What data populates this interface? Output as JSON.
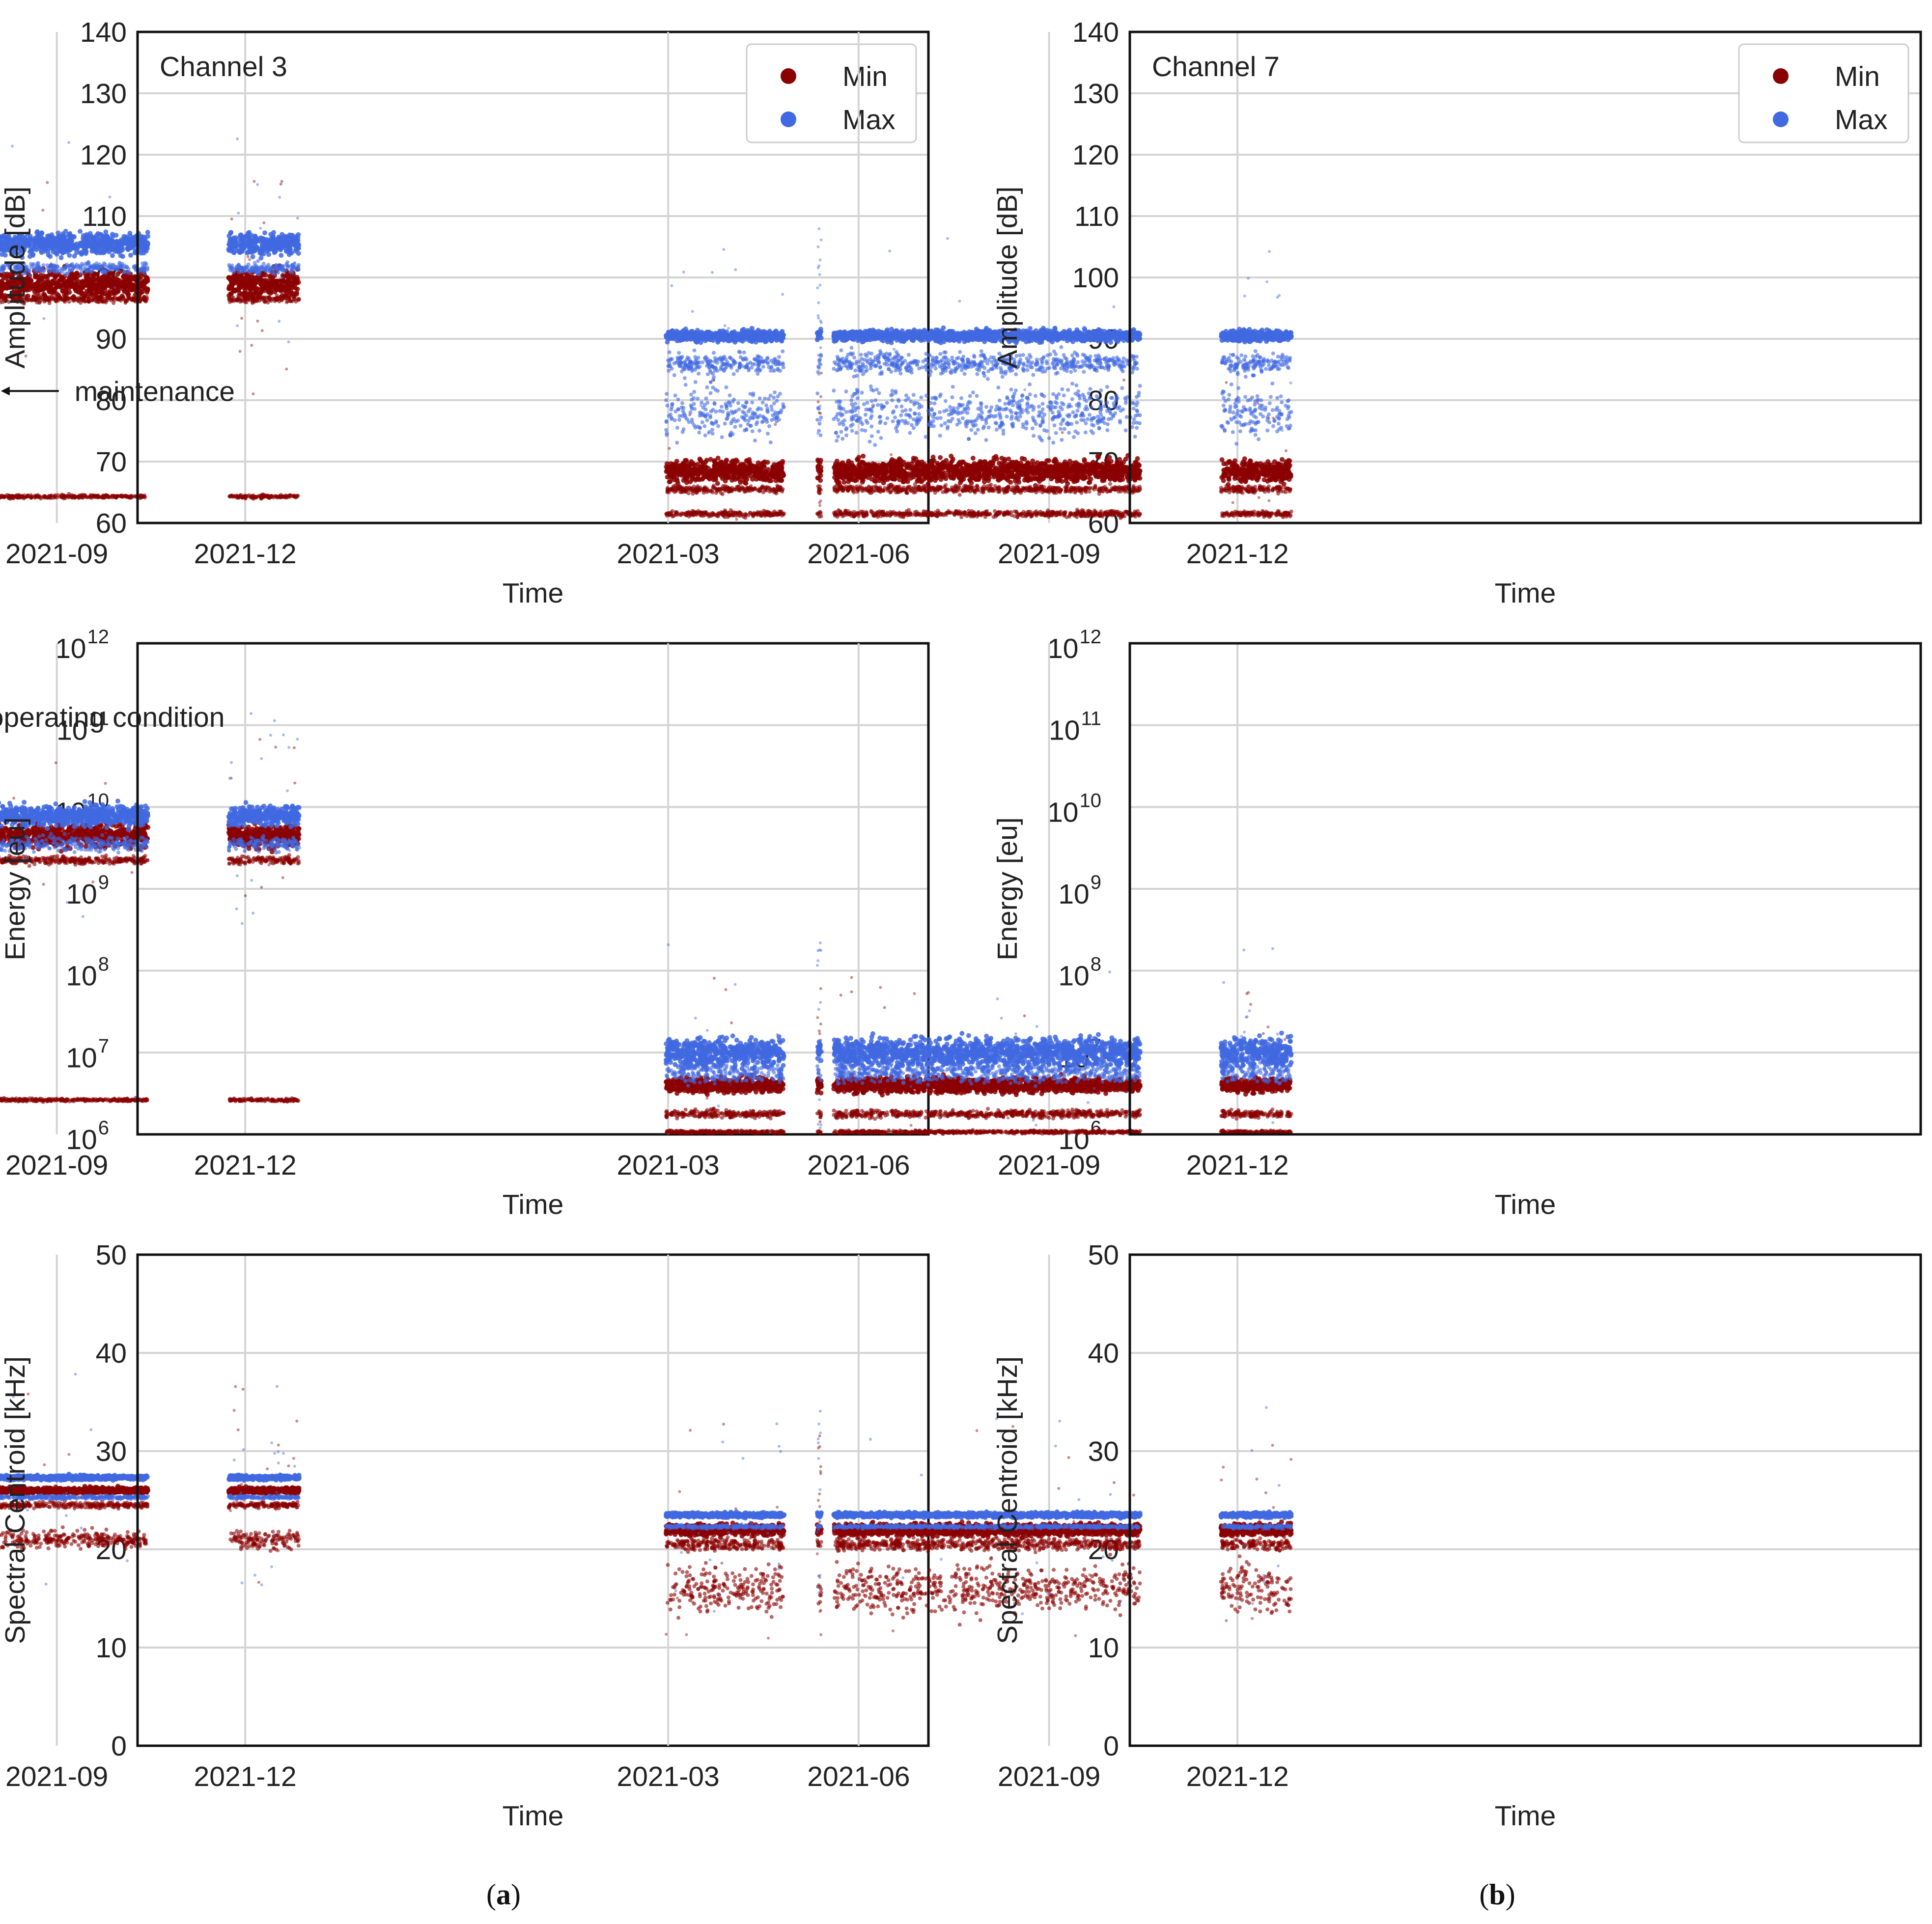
{
  "colors": {
    "min": "#8b0000",
    "max": "#4169e1",
    "grid": "#d4d4d4"
  },
  "subfigure_labels": [
    "a",
    "b"
  ],
  "chart_data": [
    {
      "type": "scatter",
      "panel": "a-amplitude",
      "title": "Channel 3",
      "xlabel": "Time",
      "ylabel": "Amplitude [dB]",
      "yscale": "linear",
      "ylim": [
        60,
        140
      ],
      "yticks": [
        "60",
        "70",
        "80",
        "90",
        "100",
        "110",
        "120",
        "130",
        "140"
      ],
      "xticks": [
        "2021-03",
        "2021-06",
        "2021-09",
        "2021-12"
      ],
      "legend": {
        "entries": [
          "Min",
          "Max"
        ],
        "placement": "top-right"
      },
      "annotation": "maintenance",
      "series": [
        {
          "name": "Min",
          "bands": [
            [
              99,
              3.5
            ],
            [
              96.5,
              1
            ],
            [
              64.3,
              0.5
            ]
          ]
        },
        {
          "name": "Max",
          "bands": [
            [
              105.5,
              3
            ],
            [
              101.5,
              1.5
            ]
          ]
        }
      ]
    },
    {
      "type": "scatter",
      "panel": "b-amplitude",
      "title": "Channel 7",
      "xlabel": "Time",
      "ylabel": "Amplitude [dB]",
      "yscale": "linear",
      "ylim": [
        60,
        140
      ],
      "yticks": [
        "60",
        "70",
        "80",
        "90",
        "100",
        "110",
        "120",
        "130",
        "140"
      ],
      "xticks": [
        "2021-03",
        "2021-06",
        "2021-09",
        "2021-12"
      ],
      "legend": {
        "entries": [
          "Min",
          "Max"
        ],
        "placement": "top-right"
      },
      "annotation": "",
      "series": [
        {
          "name": "Min",
          "bands": [
            [
              68.5,
              3
            ],
            [
              65.5,
              1
            ],
            [
              61.5,
              0.8
            ]
          ]
        },
        {
          "name": "Max",
          "bands": [
            [
              90.5,
              1.5
            ],
            [
              86,
              3
            ],
            [
              78,
              7
            ]
          ]
        }
      ]
    },
    {
      "type": "scatter",
      "panel": "a-energy",
      "title": "",
      "xlabel": "Time",
      "ylabel": "Energy [eu]",
      "yscale": "log",
      "ylim": [
        1000000,
        1000000000000
      ],
      "yticks": [
        {
          "base": "10",
          "exp": "6"
        },
        {
          "base": "10",
          "exp": "7"
        },
        {
          "base": "10",
          "exp": "8"
        },
        {
          "base": "10",
          "exp": "9"
        },
        {
          "base": "10",
          "exp": "10"
        },
        {
          "base": "10",
          "exp": "11"
        },
        {
          "base": "10",
          "exp": "12"
        }
      ],
      "xticks": [
        "2021-03",
        "2021-06",
        "2021-09",
        "2021-12"
      ],
      "annotation": "special operating condition",
      "series": [
        {
          "name": "Min",
          "bands": [
            [
              9.65,
              0.25
            ],
            [
              9.35,
              0.08
            ],
            [
              6.42,
              0.03
            ]
          ]
        },
        {
          "name": "Max",
          "bands": [
            [
              9.9,
              0.2
            ],
            [
              9.55,
              0.15
            ]
          ]
        }
      ]
    },
    {
      "type": "scatter",
      "panel": "b-energy",
      "title": "",
      "xlabel": "Time",
      "ylabel": "Energy [eu]",
      "yscale": "log",
      "ylim": [
        1000000,
        1000000000000
      ],
      "yticks": [
        {
          "base": "10",
          "exp": "6"
        },
        {
          "base": "10",
          "exp": "7"
        },
        {
          "base": "10",
          "exp": "8"
        },
        {
          "base": "10",
          "exp": "9"
        },
        {
          "base": "10",
          "exp": "10"
        },
        {
          "base": "10",
          "exp": "11"
        },
        {
          "base": "10",
          "exp": "12"
        }
      ],
      "xticks": [
        "2021-03",
        "2021-06",
        "2021-09",
        "2021-12"
      ],
      "annotation": "",
      "series": [
        {
          "name": "Min",
          "bands": [
            [
              6.6,
              0.15
            ],
            [
              6.25,
              0.08
            ],
            [
              6.03,
              0.03
            ]
          ]
        },
        {
          "name": "Max",
          "bands": [
            [
              7.0,
              0.3
            ],
            [
              6.75,
              0.2
            ]
          ]
        }
      ]
    },
    {
      "type": "scatter",
      "panel": "a-centroid",
      "title": "",
      "xlabel": "Time",
      "ylabel": "Spectral Centroid [kHz]",
      "yscale": "linear",
      "ylim": [
        0,
        50
      ],
      "yticks": [
        "0",
        "10",
        "20",
        "30",
        "40",
        "50"
      ],
      "xticks": [
        "2021-03",
        "2021-06",
        "2021-09",
        "2021-12"
      ],
      "annotation": "",
      "series": [
        {
          "name": "Min",
          "bands": [
            [
              26,
              0.5
            ],
            [
              24.5,
              0.5
            ],
            [
              21,
              1.5
            ]
          ]
        },
        {
          "name": "Max",
          "bands": [
            [
              27.3,
              0.4
            ],
            [
              25.3,
              0.3
            ]
          ]
        }
      ]
    },
    {
      "type": "scatter",
      "panel": "b-centroid",
      "title": "",
      "xlabel": "Time",
      "ylabel": "Spectral Centroid [kHz]",
      "yscale": "linear",
      "ylim": [
        0,
        50
      ],
      "yticks": [
        "0",
        "10",
        "20",
        "30",
        "40",
        "50"
      ],
      "xticks": [
        "2021-03",
        "2021-06",
        "2021-09",
        "2021-12"
      ],
      "annotation": "",
      "series": [
        {
          "name": "Min",
          "bands": [
            [
              22,
              1
            ],
            [
              20.5,
              1
            ],
            [
              16,
              4
            ]
          ]
        },
        {
          "name": "Max",
          "bands": [
            [
              23.5,
              0.4
            ],
            [
              22.3,
              0.3
            ]
          ]
        }
      ]
    }
  ]
}
